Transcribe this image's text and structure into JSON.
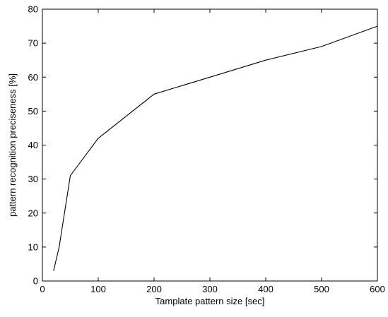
{
  "chart_data": {
    "type": "line",
    "title": "",
    "xlabel": "Tamplate pattern size [sec]",
    "ylabel": "pattern recognition preciseness [%]",
    "xlim": [
      0,
      600
    ],
    "ylim": [
      0,
      80
    ],
    "xticks": [
      0,
      100,
      200,
      300,
      400,
      500,
      600
    ],
    "yticks": [
      0,
      10,
      20,
      30,
      40,
      50,
      60,
      70,
      80
    ],
    "grid": false,
    "legend": "none",
    "series": [
      {
        "color": "#000000",
        "x": [
          20,
          30,
          50,
          100,
          200,
          300,
          400,
          500,
          600
        ],
        "y": [
          3,
          10,
          31,
          42,
          55,
          60,
          65,
          69,
          75
        ]
      }
    ]
  }
}
